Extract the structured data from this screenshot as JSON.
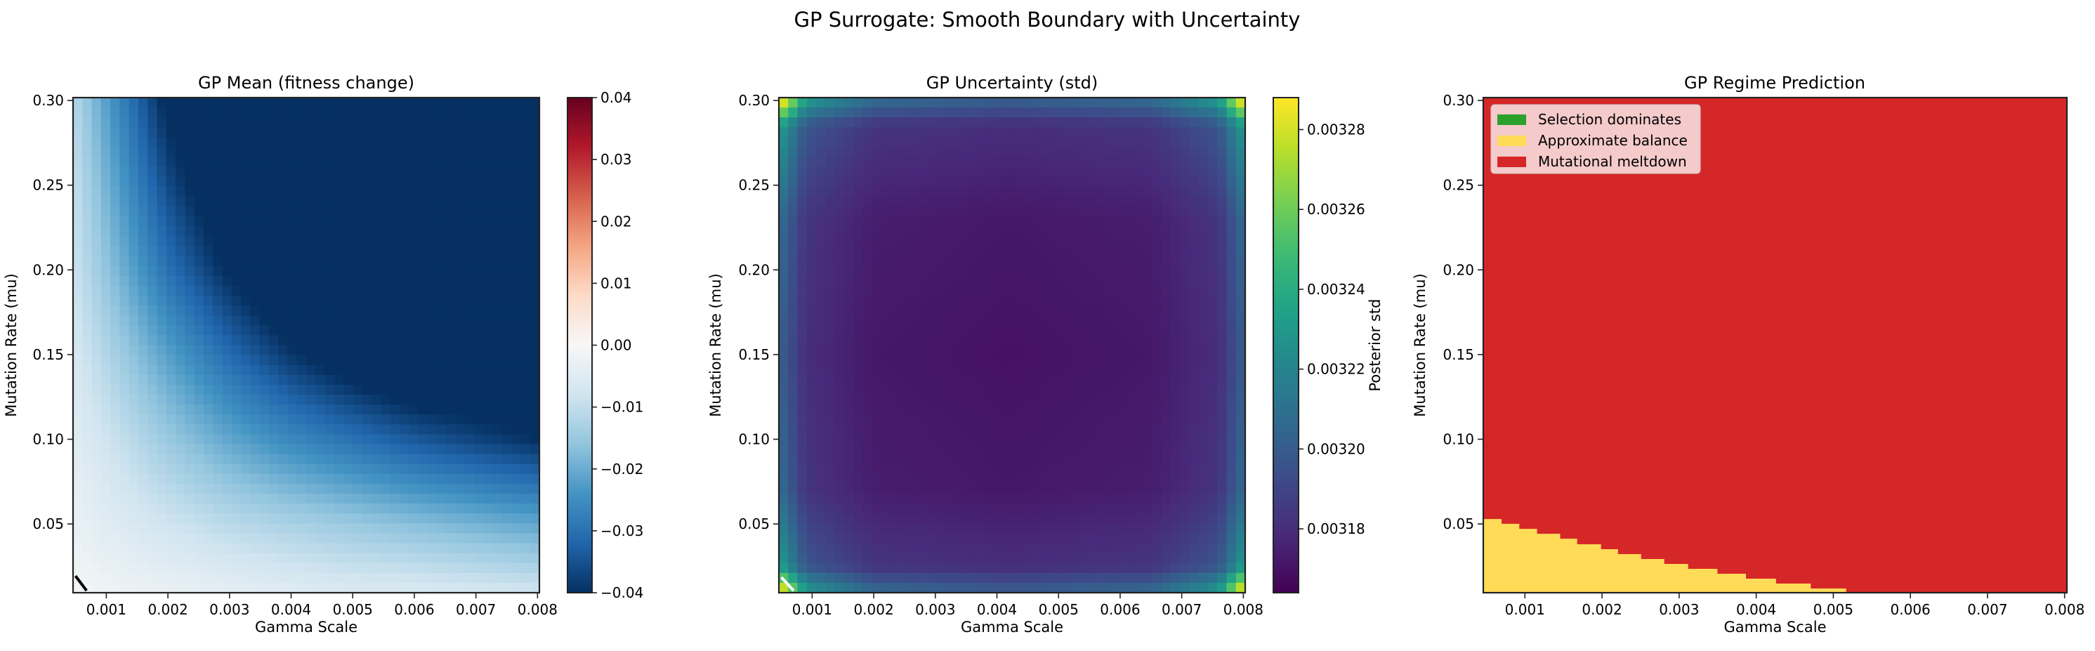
{
  "figure": {
    "title": "GP Surrogate: Smooth Boundary with Uncertainty"
  },
  "chart_data": [
    {
      "type": "heatmap",
      "title": "GP Mean (fitness change)",
      "xlabel": "Gamma Scale",
      "ylabel": "Mutation Rate (mu)",
      "xlim": [
        0.00046,
        0.00803
      ],
      "ylim": [
        0.0094,
        0.3017
      ],
      "xticks": [
        0.001,
        0.002,
        0.003,
        0.004,
        0.005,
        0.006,
        0.007,
        0.008
      ],
      "xtick_labels": [
        "0.001",
        "0.002",
        "0.003",
        "0.004",
        "0.005",
        "0.006",
        "0.007",
        "0.008"
      ],
      "yticks": [
        0.05,
        0.1,
        0.15,
        0.2,
        0.25,
        0.3
      ],
      "ytick_labels": [
        "0.05",
        "0.10",
        "0.15",
        "0.20",
        "0.25",
        "0.30"
      ],
      "colormap": "RdBu_r",
      "colorbar": {
        "range": [
          -0.04,
          0.04
        ],
        "ticks": [
          -0.04,
          -0.03,
          -0.02,
          -0.01,
          0.0,
          0.01,
          0.02,
          0.03,
          0.04
        ],
        "tick_labels": [
          "−0.04",
          "−0.03",
          "−0.02",
          "−0.01",
          "0.00",
          "0.01",
          "0.02",
          "0.03",
          "0.04"
        ],
        "label": ""
      },
      "grid": {
        "gamma": [
          0.0005,
          0.001,
          0.002,
          0.003,
          0.004,
          0.005,
          0.006,
          0.007,
          0.008
        ],
        "mu": [
          0.01,
          0.05,
          0.1,
          0.15,
          0.2,
          0.25,
          0.3
        ],
        "values": [
          [
            -0.001,
            -0.002,
            -0.003,
            -0.004,
            -0.005,
            -0.006,
            -0.006,
            -0.007,
            -0.008
          ],
          [
            -0.003,
            -0.005,
            -0.008,
            -0.011,
            -0.013,
            -0.015,
            -0.017,
            -0.019,
            -0.021
          ],
          [
            -0.005,
            -0.008,
            -0.015,
            -0.021,
            -0.026,
            -0.03,
            -0.034,
            -0.037,
            -0.04
          ],
          [
            -0.007,
            -0.012,
            -0.022,
            -0.031,
            -0.039,
            -0.045,
            -0.05,
            -0.05,
            -0.05
          ],
          [
            -0.009,
            -0.016,
            -0.03,
            -0.041,
            -0.05,
            -0.05,
            -0.05,
            -0.05,
            -0.05
          ],
          [
            -0.01,
            -0.019,
            -0.036,
            -0.048,
            -0.05,
            -0.05,
            -0.05,
            -0.05,
            -0.05
          ],
          [
            -0.012,
            -0.022,
            -0.042,
            -0.05,
            -0.05,
            -0.05,
            -0.05,
            -0.05,
            -0.05
          ]
        ]
      },
      "contour": {
        "level": 0.0,
        "color": "#000000",
        "gamma": [
          0.0005,
          0.00068
        ],
        "mu": [
          0.0193,
          0.0106
        ]
      }
    },
    {
      "type": "heatmap",
      "title": "GP Uncertainty (std)",
      "xlabel": "Gamma Scale",
      "ylabel": "Mutation Rate (mu)",
      "xlim": [
        0.00046,
        0.00803
      ],
      "ylim": [
        0.0094,
        0.3017
      ],
      "xticks": [
        0.001,
        0.002,
        0.003,
        0.004,
        0.005,
        0.006,
        0.007,
        0.008
      ],
      "xtick_labels": [
        "0.001",
        "0.002",
        "0.003",
        "0.004",
        "0.005",
        "0.006",
        "0.007",
        "0.008"
      ],
      "yticks": [
        0.05,
        0.1,
        0.15,
        0.2,
        0.25,
        0.3
      ],
      "ytick_labels": [
        "0.05",
        "0.10",
        "0.15",
        "0.20",
        "0.25",
        "0.30"
      ],
      "colormap": "viridis",
      "colorbar": {
        "range": [
          0.003164,
          0.003288
        ],
        "ticks": [
          0.00318,
          0.0032,
          0.00322,
          0.00324,
          0.00326,
          0.00328
        ],
        "tick_labels": [
          "0.00318",
          "0.00320",
          "0.00322",
          "0.00324",
          "0.00326",
          "0.00328"
        ],
        "label": "Posterior std"
      },
      "grid": {
        "gamma": [
          0.0005,
          0.0009,
          0.002,
          0.0042,
          0.0065,
          0.0076,
          0.008
        ],
        "mu": [
          0.01,
          0.025,
          0.07,
          0.15,
          0.23,
          0.285,
          0.3
        ],
        "values": [
          [
            0.00329,
            0.00323,
            0.003206,
            0.0032,
            0.003206,
            0.00323,
            0.00329
          ],
          [
            0.00323,
            0.003197,
            0.003183,
            0.00318,
            0.003183,
            0.003197,
            0.00323
          ],
          [
            0.003206,
            0.003183,
            0.003174,
            0.003172,
            0.003174,
            0.003183,
            0.003206
          ],
          [
            0.0032,
            0.00318,
            0.003172,
            0.00317,
            0.003172,
            0.00318,
            0.0032
          ],
          [
            0.003206,
            0.003183,
            0.003174,
            0.003172,
            0.003174,
            0.003183,
            0.003206
          ],
          [
            0.00323,
            0.003197,
            0.003183,
            0.00318,
            0.003183,
            0.003197,
            0.00323
          ],
          [
            0.00329,
            0.00323,
            0.003206,
            0.0032,
            0.003206,
            0.00323,
            0.00329
          ]
        ]
      },
      "contour": {
        "color": "#ffffff",
        "gamma": [
          0.0005,
          0.0007
        ],
        "mu": [
          0.0185,
          0.0106
        ]
      }
    },
    {
      "type": "heatmap",
      "title": "GP Regime Prediction",
      "xlabel": "Gamma Scale",
      "ylabel": "Mutation Rate (mu)",
      "xlim": [
        0.00046,
        0.00803
      ],
      "ylim": [
        0.0094,
        0.3017
      ],
      "xticks": [
        0.001,
        0.002,
        0.003,
        0.004,
        0.005,
        0.006,
        0.007,
        0.008
      ],
      "xtick_labels": [
        "0.001",
        "0.002",
        "0.003",
        "0.004",
        "0.005",
        "0.006",
        "0.007",
        "0.008"
      ],
      "yticks": [
        0.05,
        0.1,
        0.15,
        0.2,
        0.25,
        0.3
      ],
      "ytick_labels": [
        "0.05",
        "0.10",
        "0.15",
        "0.20",
        "0.25",
        "0.30"
      ],
      "legend_position": "upper-left",
      "legend": [
        {
          "label": "Selection dominates",
          "color": "#2ca02c"
        },
        {
          "label": "Approximate balance",
          "color": "#ffdb58"
        },
        {
          "label": "Mutational meltdown",
          "color": "#d62728"
        }
      ],
      "background_regime": "Mutational meltdown",
      "balance_region": {
        "gamma_edges": [
          0.00046,
          0.00069,
          0.00092,
          0.00115,
          0.00145,
          0.00167,
          0.00198,
          0.0022,
          0.0025,
          0.0028,
          0.00311,
          0.00349,
          0.00386,
          0.00425,
          0.0047,
          0.00516
        ],
        "mu_upper": [
          0.0529,
          0.0501,
          0.0471,
          0.0442,
          0.0413,
          0.038,
          0.0351,
          0.0322,
          0.0293,
          0.0264,
          0.0235,
          0.0206,
          0.0177,
          0.0148,
          0.0119
        ]
      }
    }
  ]
}
